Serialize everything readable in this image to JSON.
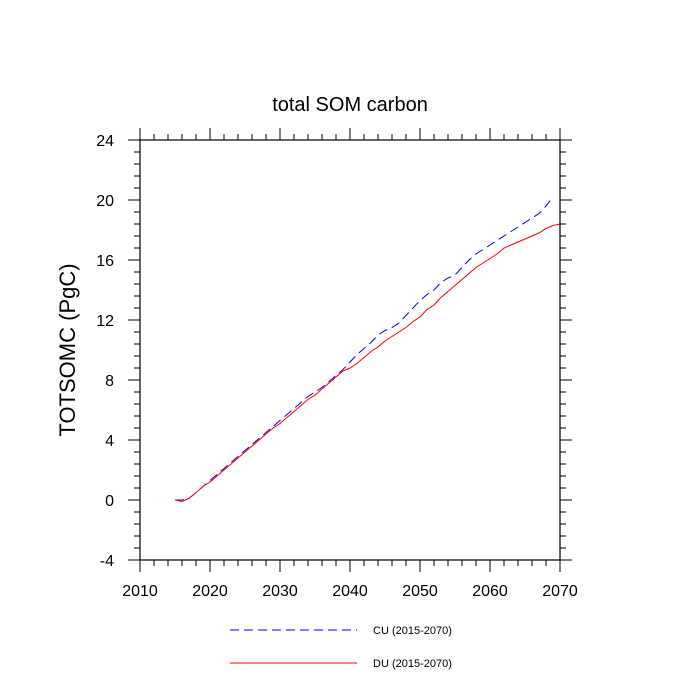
{
  "chart_data": {
    "type": "line",
    "title": "total SOM carbon",
    "xlabel": "",
    "ylabel": "TOTSOMC  (PgC)",
    "xlim": [
      2010,
      2070
    ],
    "ylim": [
      -4,
      24
    ],
    "xticks": [
      2010,
      2020,
      2030,
      2040,
      2050,
      2060,
      2070
    ],
    "yticks": [
      -4,
      0,
      4,
      8,
      12,
      16,
      20,
      24
    ],
    "grid": false,
    "legend_position": "bottom",
    "series": [
      {
        "name": "CU (2015-2070)",
        "color": "#0000ff",
        "style": "dashed",
        "x": [
          2015,
          2016,
          2017,
          2018,
          2019,
          2020,
          2021,
          2022,
          2023,
          2024,
          2025,
          2026,
          2027,
          2028,
          2029,
          2030,
          2031,
          2032,
          2033,
          2034,
          2035,
          2036,
          2037,
          2038,
          2039,
          2040,
          2041,
          2042,
          2043,
          2044,
          2045,
          2046,
          2047,
          2048,
          2049,
          2050,
          2051,
          2052,
          2053,
          2054,
          2055,
          2056,
          2057,
          2058,
          2059,
          2060,
          2061,
          2062,
          2063,
          2064,
          2065,
          2066,
          2067,
          2068,
          2069
        ],
        "y": [
          0.0,
          0.0,
          0.1,
          0.5,
          0.9,
          1.3,
          1.7,
          2.1,
          2.5,
          2.9,
          3.3,
          3.7,
          4.1,
          4.5,
          4.9,
          5.3,
          5.7,
          6.1,
          6.5,
          6.9,
          7.2,
          7.5,
          7.9,
          8.3,
          8.7,
          9.2,
          9.7,
          10.1,
          10.5,
          11.0,
          11.3,
          11.5,
          11.8,
          12.3,
          12.8,
          13.3,
          13.7,
          14.0,
          14.5,
          14.8,
          15.0,
          15.5,
          16.0,
          16.4,
          16.7,
          17.0,
          17.3,
          17.6,
          17.9,
          18.2,
          18.5,
          18.8,
          19.1,
          19.6,
          20.2
        ]
      },
      {
        "name": "DU (2015-2070)",
        "color": "#ff0000",
        "style": "solid",
        "x": [
          2015,
          2016,
          2017,
          2018,
          2019,
          2020,
          2021,
          2022,
          2023,
          2024,
          2025,
          2026,
          2027,
          2028,
          2029,
          2030,
          2031,
          2032,
          2033,
          2034,
          2035,
          2036,
          2037,
          2038,
          2039,
          2040,
          2041,
          2042,
          2043,
          2044,
          2045,
          2046,
          2047,
          2048,
          2049,
          2050,
          2051,
          2052,
          2053,
          2054,
          2055,
          2056,
          2057,
          2058,
          2059,
          2060,
          2061,
          2062,
          2063,
          2064,
          2065,
          2066,
          2067,
          2068,
          2069,
          2070
        ],
        "y": [
          0.0,
          -0.1,
          0.1,
          0.5,
          0.9,
          1.2,
          1.6,
          2.0,
          2.4,
          2.8,
          3.2,
          3.6,
          4.0,
          4.4,
          4.8,
          5.1,
          5.5,
          5.9,
          6.3,
          6.7,
          7.0,
          7.4,
          7.8,
          8.2,
          8.6,
          8.8,
          9.1,
          9.5,
          9.9,
          10.2,
          10.6,
          10.9,
          11.2,
          11.5,
          11.9,
          12.2,
          12.7,
          13.0,
          13.5,
          13.9,
          14.3,
          14.7,
          15.1,
          15.5,
          15.8,
          16.1,
          16.4,
          16.8,
          17.0,
          17.2,
          17.4,
          17.6,
          17.8,
          18.1,
          18.3,
          18.4
        ]
      }
    ]
  }
}
